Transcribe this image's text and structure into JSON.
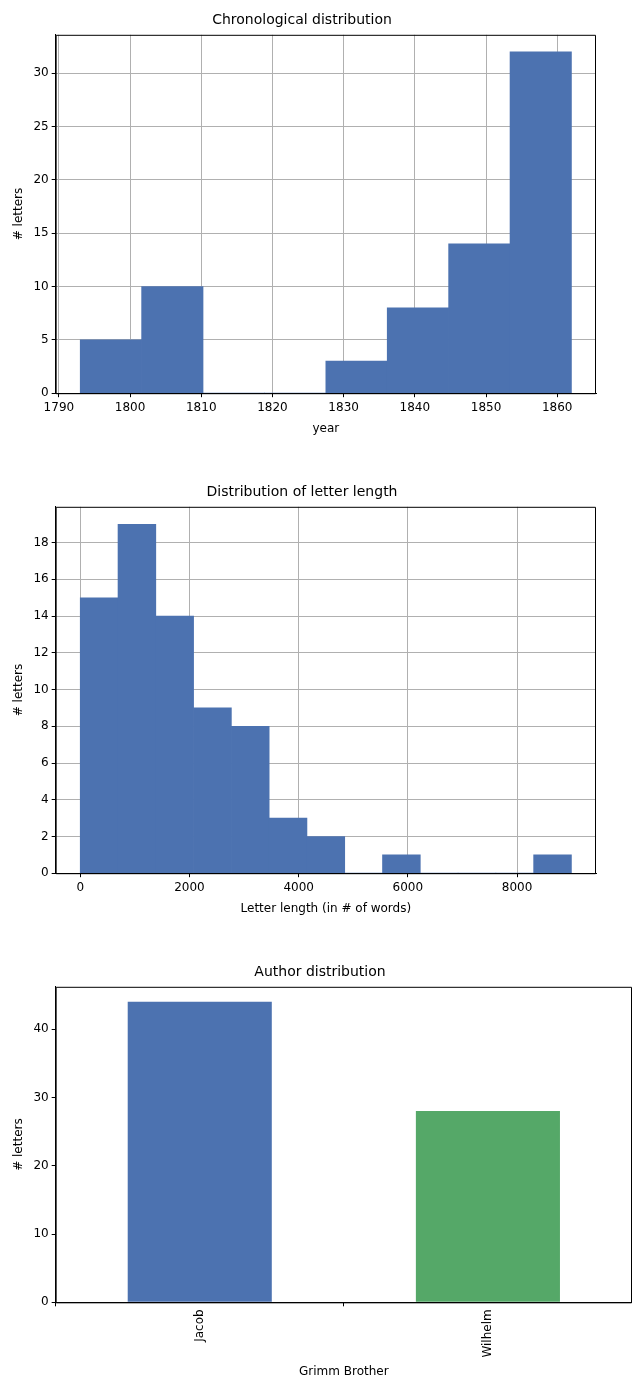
{
  "chart_data": [
    {
      "type": "histogram",
      "title": "Chronological distribution",
      "xlabel": "year",
      "ylabel": "# letters",
      "bins": [
        1793,
        1801.625,
        1810.25,
        1818.875,
        1827.5,
        1836.125,
        1844.75,
        1853.375,
        1862
      ],
      "values": [
        5,
        10,
        0,
        0,
        3,
        8,
        14,
        32
      ],
      "color": "#4c72b0",
      "xlim": [
        1789.55,
        1865.45
      ],
      "xticks": [
        1790,
        1800,
        1810,
        1820,
        1830,
        1840,
        1850,
        1860
      ],
      "ylim": [
        0,
        33.6
      ],
      "yticks": [
        0,
        5,
        10,
        15,
        20,
        25,
        30
      ],
      "grid": true,
      "legend": false
    },
    {
      "type": "histogram",
      "title": "Distribution of letter length",
      "xlabel": "Letter length (in # of words)",
      "ylabel": "# letters",
      "bins": [
        0,
        692,
        1384,
        2076,
        2768,
        3460,
        4152,
        4844,
        5536,
        6228,
        6920,
        7612,
        8304,
        8996
      ],
      "values": [
        15,
        19,
        14,
        9,
        8,
        3,
        2,
        0,
        1,
        0,
        0,
        0,
        1
      ],
      "color": "#4c72b0",
      "xlim": [
        -450,
        9446
      ],
      "xticks": [
        0,
        2000,
        4000,
        6000,
        8000
      ],
      "ylim": [
        0,
        19.95
      ],
      "yticks": [
        0,
        2,
        4,
        6,
        8,
        10,
        12,
        14,
        16,
        18
      ],
      "grid": true,
      "legend": false
    },
    {
      "type": "bar",
      "title": "Author distribution",
      "xlabel": "Grimm Brother",
      "ylabel": "# letters",
      "categories": [
        "Jacob",
        "Wilhelm"
      ],
      "values": [
        44,
        28
      ],
      "colors": [
        "#4c72b0",
        "#55a868"
      ],
      "ylim": [
        0,
        46.2
      ],
      "yticks": [
        0,
        10,
        20,
        30,
        40
      ],
      "grid": false,
      "legend": false
    }
  ]
}
